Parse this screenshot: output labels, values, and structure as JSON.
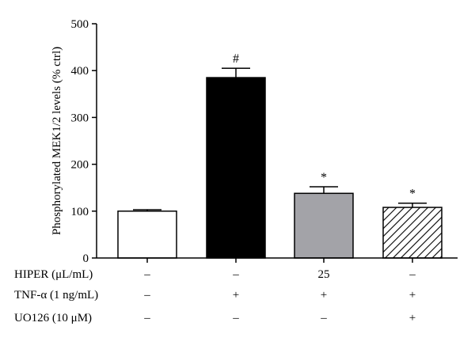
{
  "chart_data": {
    "type": "bar",
    "title": "",
    "xlabel": "",
    "ylabel": "Phosphorylated MEK1/2 levels (% ctrl)",
    "ylim": [
      0,
      500
    ],
    "yticks": [
      0,
      100,
      200,
      300,
      400,
      500
    ],
    "grid": false,
    "bars": [
      {
        "value": 100,
        "error": 3,
        "fill": "white",
        "marker": ""
      },
      {
        "value": 385,
        "error": 20,
        "fill": "black",
        "marker": "#"
      },
      {
        "value": 138,
        "error": 14,
        "fill": "gray",
        "marker": "*"
      },
      {
        "value": 108,
        "error": 9,
        "fill": "hatched",
        "marker": "*"
      }
    ],
    "conditions": [
      {
        "label": "HIPER (μL/mL)",
        "values": [
          "–",
          "–",
          "25",
          "–"
        ]
      },
      {
        "label": "TNF-α (1 ng/mL)",
        "values": [
          "–",
          "+",
          "+",
          "+"
        ]
      },
      {
        "label": "UO126 (10 μM)",
        "values": [
          "–",
          "–",
          "–",
          "+"
        ]
      }
    ]
  },
  "colors": {
    "white_bar": "#ffffff",
    "black_bar": "#000000",
    "gray_bar": "#a3a3a8",
    "hatch": "#000000",
    "axis": "#000000"
  }
}
